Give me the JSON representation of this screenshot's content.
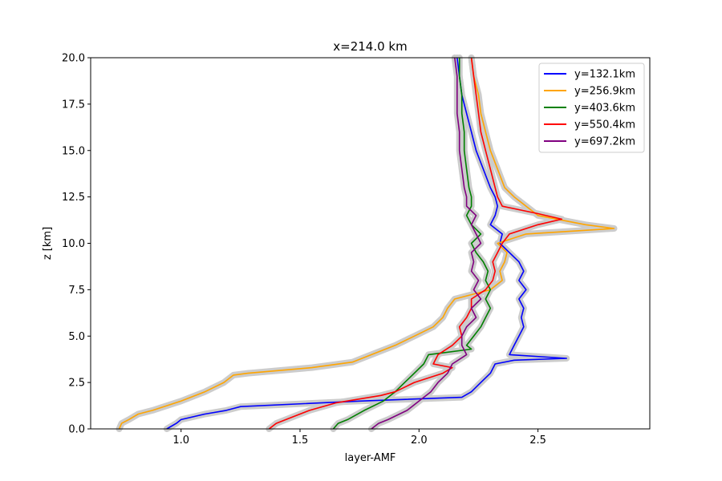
{
  "chart_data": {
    "type": "line",
    "title": "x=214.0 km",
    "xlabel": "layer-AMF",
    "ylabel": "z [km]",
    "xlim": [
      0.62,
      2.97
    ],
    "ylim": [
      0,
      20
    ],
    "xticks": [
      1.0,
      1.5,
      2.0,
      2.5
    ],
    "xtick_labels": [
      "1.0",
      "1.5",
      "2.0",
      "2.5"
    ],
    "yticks": [
      0,
      2.5,
      5,
      7.5,
      10,
      12.5,
      15,
      17.5,
      20
    ],
    "ytick_labels": [
      "0.0",
      "2.5",
      "5.0",
      "7.5",
      "10.0",
      "12.5",
      "15.0",
      "17.5",
      "20.0"
    ],
    "grid": false,
    "legend_position": "top-right",
    "uncertainty_band_color": "#cccccc",
    "series": [
      {
        "name": "y=132.1km",
        "color": "#0000ff",
        "z": [
          0,
          0.3,
          0.5,
          0.8,
          1.0,
          1.2,
          1.5,
          1.7,
          2.0,
          2.5,
          3.0,
          3.5,
          3.7,
          3.8,
          4.0,
          4.5,
          5.0,
          5.5,
          6.0,
          6.5,
          7.0,
          7.5,
          8.0,
          8.5,
          9.0,
          9.5,
          10.0,
          10.5,
          11.0,
          11.5,
          12.0,
          12.5,
          13.0,
          14.0,
          15.0,
          16.0,
          17.0,
          18.0,
          19.0,
          20.0
        ],
        "x": [
          0.94,
          0.98,
          1.0,
          1.1,
          1.19,
          1.25,
          1.75,
          2.18,
          2.22,
          2.26,
          2.3,
          2.32,
          2.4,
          2.62,
          2.38,
          2.4,
          2.42,
          2.44,
          2.43,
          2.44,
          2.42,
          2.45,
          2.42,
          2.44,
          2.42,
          2.38,
          2.34,
          2.35,
          2.3,
          2.32,
          2.33,
          2.32,
          2.3,
          2.27,
          2.24,
          2.22,
          2.2,
          2.18,
          2.17,
          2.16
        ]
      },
      {
        "name": "y=256.9km",
        "color": "#ffa500",
        "z": [
          0,
          0.3,
          0.5,
          0.8,
          1.0,
          1.5,
          2.0,
          2.5,
          2.9,
          3.0,
          3.3,
          3.6,
          4.0,
          4.5,
          5.0,
          5.5,
          6.0,
          6.5,
          7.0,
          7.5,
          8.0,
          8.5,
          9.0,
          9.5,
          10.0,
          10.5,
          10.8,
          11.0,
          11.5,
          12.0,
          12.5,
          13.0,
          14.0,
          15.0,
          16.0,
          17.0,
          18.0,
          19.0,
          20.0
        ],
        "x": [
          0.74,
          0.75,
          0.78,
          0.82,
          0.88,
          1.0,
          1.1,
          1.18,
          1.22,
          1.28,
          1.55,
          1.72,
          1.8,
          1.9,
          1.98,
          2.06,
          2.1,
          2.12,
          2.15,
          2.3,
          2.35,
          2.34,
          2.36,
          2.37,
          2.33,
          2.45,
          2.82,
          2.7,
          2.5,
          2.45,
          2.4,
          2.36,
          2.33,
          2.3,
          2.28,
          2.26,
          2.25,
          2.23,
          2.22
        ]
      },
      {
        "name": "y=403.6km",
        "color": "#008000",
        "z": [
          0,
          0.3,
          0.5,
          1.0,
          1.5,
          2.0,
          2.5,
          3.0,
          3.5,
          4.0,
          4.3,
          4.5,
          5.0,
          5.5,
          6.0,
          6.5,
          7.0,
          7.5,
          8.0,
          8.5,
          9.0,
          9.5,
          10.0,
          10.5,
          11.0,
          11.5,
          12.0,
          12.5,
          13.0,
          14.0,
          15.0,
          16.0,
          17.0,
          18.0,
          19.0,
          20.0
        ],
        "x": [
          1.64,
          1.66,
          1.7,
          1.77,
          1.85,
          1.9,
          1.94,
          1.98,
          2.02,
          2.04,
          2.22,
          2.2,
          2.23,
          2.26,
          2.28,
          2.3,
          2.28,
          2.3,
          2.28,
          2.29,
          2.27,
          2.24,
          2.22,
          2.26,
          2.22,
          2.2,
          2.22,
          2.22,
          2.21,
          2.2,
          2.19,
          2.19,
          2.18,
          2.18,
          2.17,
          2.17
        ]
      },
      {
        "name": "y=550.4km",
        "color": "#ff0000",
        "z": [
          0,
          0.3,
          0.6,
          1.0,
          1.4,
          1.8,
          2.0,
          2.5,
          3.0,
          3.3,
          3.5,
          4.0,
          4.5,
          5.0,
          5.5,
          6.0,
          6.5,
          7.0,
          7.5,
          8.0,
          8.5,
          9.0,
          9.5,
          10.0,
          10.5,
          11.0,
          11.3,
          11.6,
          12.0,
          12.5,
          13.0,
          14.0,
          15.0,
          16.0,
          17.0,
          18.0,
          19.0,
          20.0
        ],
        "x": [
          1.37,
          1.4,
          1.46,
          1.54,
          1.65,
          1.84,
          1.9,
          1.98,
          2.1,
          2.14,
          2.06,
          2.08,
          2.14,
          2.18,
          2.17,
          2.2,
          2.22,
          2.22,
          2.28,
          2.31,
          2.32,
          2.31,
          2.33,
          2.35,
          2.38,
          2.5,
          2.6,
          2.5,
          2.35,
          2.33,
          2.32,
          2.3,
          2.28,
          2.26,
          2.25,
          2.24,
          2.23,
          2.22
        ]
      },
      {
        "name": "y=697.2km",
        "color": "#800080",
        "z": [
          0,
          0.3,
          0.5,
          1.0,
          1.5,
          2.0,
          2.5,
          3.0,
          3.5,
          4.0,
          4.5,
          5.0,
          5.5,
          6.0,
          6.5,
          7.0,
          7.5,
          8.0,
          8.5,
          9.0,
          9.5,
          10.0,
          10.5,
          11.0,
          11.5,
          12.0,
          12.5,
          13.0,
          14.0,
          15.0,
          16.0,
          17.0,
          18.0,
          19.0,
          20.0
        ],
        "x": [
          1.8,
          1.83,
          1.87,
          1.95,
          2.0,
          2.05,
          2.08,
          2.12,
          2.14,
          2.2,
          2.18,
          2.18,
          2.2,
          2.24,
          2.22,
          2.26,
          2.23,
          2.25,
          2.22,
          2.23,
          2.22,
          2.26,
          2.24,
          2.22,
          2.24,
          2.2,
          2.2,
          2.19,
          2.18,
          2.17,
          2.17,
          2.16,
          2.16,
          2.16,
          2.15
        ]
      }
    ]
  }
}
